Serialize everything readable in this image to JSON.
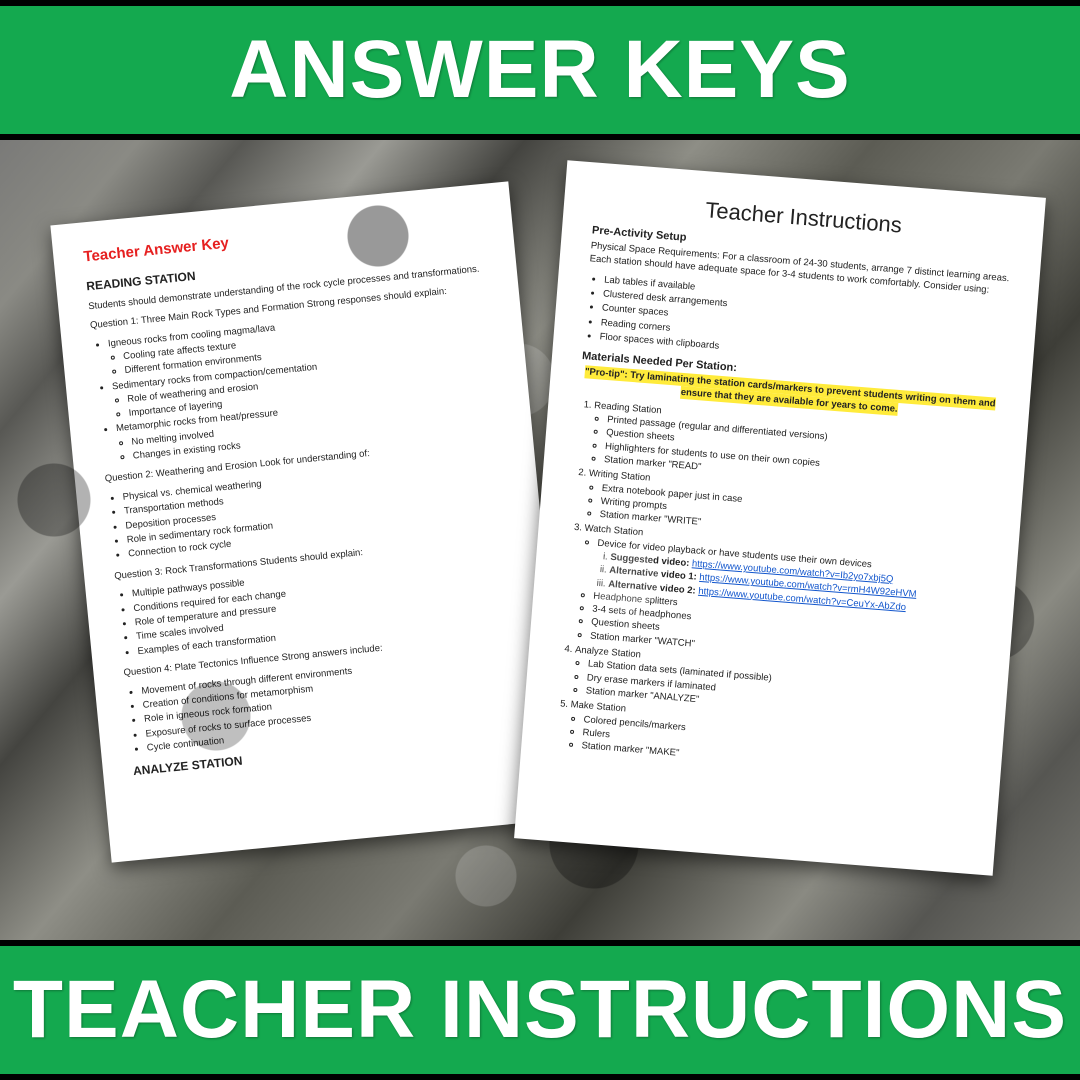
{
  "banners": {
    "top": "ANSWER KEYS",
    "bottom": "TEACHER INSTRUCTIONS"
  },
  "colors": {
    "green": "#14a94f",
    "black": "#000000",
    "white": "#ffffff",
    "red_heading": "#e62020",
    "link": "#1155cc",
    "highlight": "#ffeb3b"
  },
  "left_page": {
    "heading": "Teacher Answer Key",
    "section1_title": "READING STATION",
    "intro": "Students should demonstrate understanding of the rock cycle processes and transformations.",
    "q1": "Question 1: Three Main Rock Types and Formation Strong responses should explain:",
    "q1_bullets": [
      "Igneous rocks from cooling magma/lava",
      "Sedimentary rocks from compaction/cementation",
      "Metamorphic rocks from heat/pressure"
    ],
    "q1_sub1": [
      "Cooling rate affects texture",
      "Different formation environments"
    ],
    "q1_sub2": [
      "Role of weathering and erosion",
      "Importance of layering"
    ],
    "q1_sub3": [
      "No melting involved",
      "Changes in existing rocks"
    ],
    "q2": "Question 2: Weathering and Erosion Look for understanding of:",
    "q2_bullets": [
      "Physical vs. chemical weathering",
      "Transportation methods",
      "Deposition processes",
      "Role in sedimentary rock formation",
      "Connection to rock cycle"
    ],
    "q3": "Question 3: Rock Transformations Students should explain:",
    "q3_bullets": [
      "Multiple pathways possible",
      "Conditions required for each change",
      "Role of temperature and pressure",
      "Time scales involved",
      "Examples of each transformation"
    ],
    "q4": "Question 4: Plate Tectonics Influence Strong answers include:",
    "q4_bullets": [
      "Movement of rocks through different environments",
      "Creation of conditions for metamorphism",
      "Role in igneous rock formation",
      "Exposure of rocks to surface processes",
      "Cycle continuation"
    ],
    "section2_title": "ANALYZE STATION"
  },
  "right_page": {
    "title": "Teacher Instructions",
    "sub1": "Pre-Activity Setup",
    "intro": "Physical Space Requirements: For a classroom of 24-30 students, arrange 7 distinct learning areas. Each station should have adequate space for 3-4 students to work comfortably. Consider using:",
    "space_bullets": [
      "Lab tables if available",
      "Clustered desk arrangements",
      "Counter spaces",
      "Reading corners",
      "Floor spaces with clipboards"
    ],
    "materials_heading": "Materials Needed Per Station:",
    "protip": "\"Pro-tip\": Try laminating the station cards/markers to prevent students writing on them and ensure that they are available for years to come.",
    "stations": {
      "s1": "Reading Station",
      "s1_items": [
        "Printed passage (regular and differentiated versions)",
        "Question sheets",
        "Highlighters for students to use on their own copies",
        "Station marker \"READ\""
      ],
      "s2": "Writing Station",
      "s2_items": [
        "Extra notebook paper just in case",
        "Writing prompts",
        "Station marker \"WRITE\""
      ],
      "s3": "Watch Station",
      "s3_device": "Device for video playback or have students use their own devices",
      "s3_v1_label": "Suggested video:",
      "s3_v1_url": "https://www.youtube.com/watch?v=Ib2yo7xbj5Q",
      "s3_v2_label": "Alternative video 1:",
      "s3_v2_url": "https://www.youtube.com/watch?v=rmH4W92eHVM",
      "s3_v3_label": "Alternative video 2:",
      "s3_v3_url": "https://www.youtube.com/watch?v=CeuYx-AbZdo",
      "s3_items2": [
        "Headphone splitters",
        "3-4 sets of headphones",
        "Question sheets",
        "Station marker \"WATCH\""
      ],
      "s4": "Analyze Station",
      "s4_items": [
        "Lab Station data sets (laminated if possible)",
        "Dry erase markers if laminated",
        "Station marker \"ANALYZE\""
      ],
      "s5": "Make Station",
      "s5_items": [
        "Colored pencils/markers",
        "Rulers",
        "Station marker \"MAKE\""
      ]
    }
  }
}
